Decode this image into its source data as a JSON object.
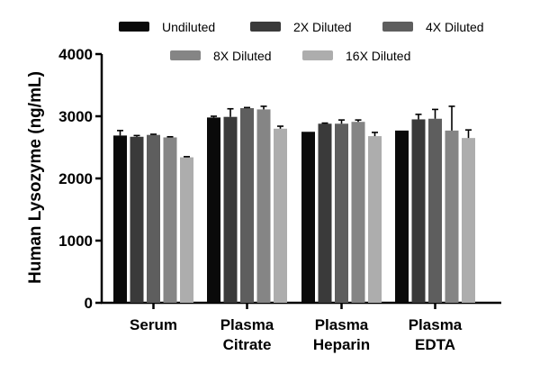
{
  "chart_data": {
    "type": "bar",
    "title": "",
    "xlabel": "",
    "ylabel": "Human Lysozyme (ng/mL)",
    "ylim": [
      0,
      4000
    ],
    "yticks": [
      "0",
      "1000",
      "2000",
      "3000",
      "4000"
    ],
    "ytick_values": [
      0,
      1000,
      2000,
      3000,
      4000
    ],
    "categories": [
      [
        "Serum"
      ],
      [
        "Plasma",
        "Citrate"
      ],
      [
        "Plasma",
        "Heparin"
      ],
      [
        "Plasma",
        "EDTA"
      ]
    ],
    "legend_position": "top",
    "series": [
      {
        "name": "Undiluted",
        "color": "#0a0a0a",
        "values": [
          2690,
          2980,
          2750,
          2770
        ],
        "errors": [
          80,
          20,
          0,
          0
        ]
      },
      {
        "name": "2X Diluted",
        "color": "#3a3a3a",
        "values": [
          2670,
          2990,
          2880,
          2950
        ],
        "errors": [
          20,
          130,
          10,
          80
        ]
      },
      {
        "name": "4X Diluted",
        "color": "#5e5e5e",
        "values": [
          2700,
          3130,
          2880,
          2960
        ],
        "errors": [
          10,
          10,
          60,
          150
        ]
      },
      {
        "name": "8X Diluted",
        "color": "#858585",
        "values": [
          2660,
          3110,
          2910,
          2770
        ],
        "errors": [
          10,
          50,
          30,
          390
        ]
      },
      {
        "name": "16X Diluted",
        "color": "#adadad",
        "values": [
          2340,
          2800,
          2680,
          2650
        ],
        "errors": [
          10,
          40,
          60,
          130
        ]
      }
    ]
  }
}
